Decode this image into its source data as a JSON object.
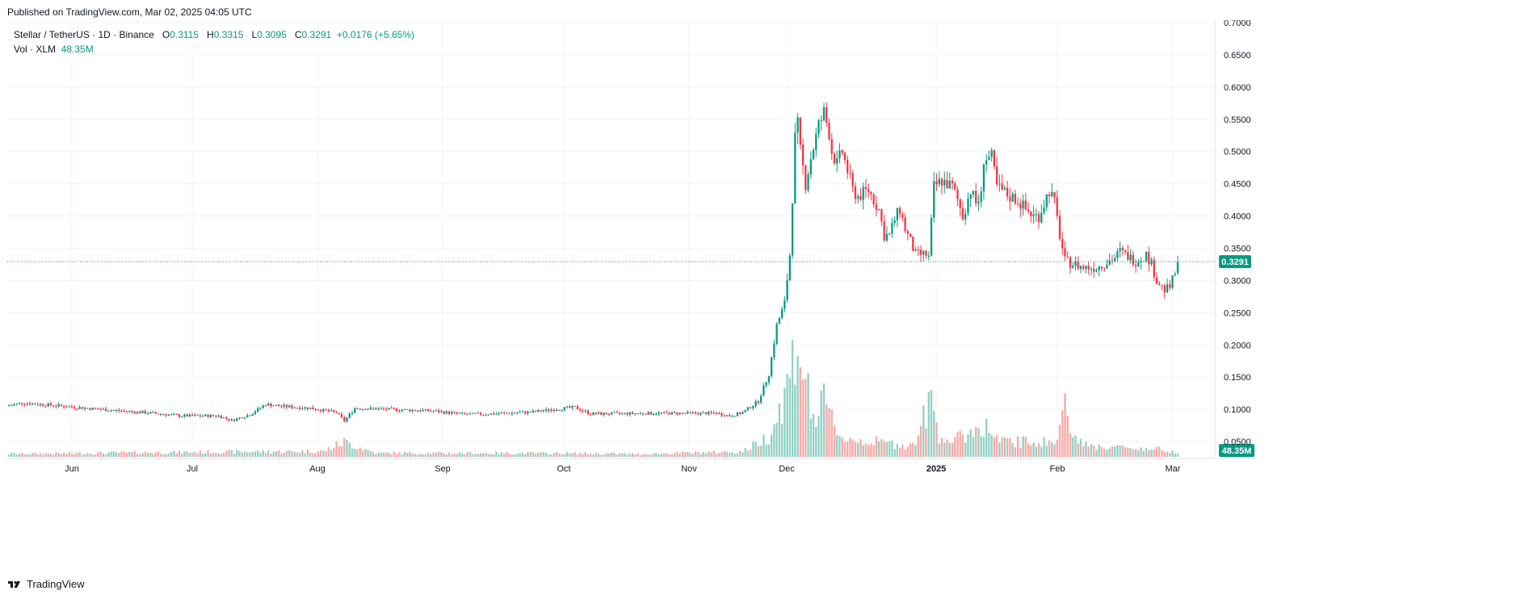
{
  "header": {
    "published": "Published on TradingView.com, Mar 02, 2025 04:05 UTC"
  },
  "legend": {
    "symbol": "Stellar / TetherUS · 1D · Binance",
    "o_label": "O",
    "o": "0.3115",
    "h_label": "H",
    "h": "0.3315",
    "l_label": "L",
    "l": "0.3095",
    "c_label": "C",
    "c": "0.3291",
    "change": "+0.0176 (+5.65%)",
    "vol_label": "Vol · XLM",
    "vol": "48.35M"
  },
  "footer": {
    "brand": "TradingView"
  },
  "colors": {
    "up": "#089981",
    "down": "#f23645",
    "vol_up": "#8fd1c6",
    "vol_down": "#f7a9a7",
    "grid": "#f0f3fa",
    "text": "#131722"
  },
  "chart_data": {
    "type": "candlestick",
    "title": "Stellar / TetherUS · 1D · Binance",
    "x_tick_labels": [
      "Jun",
      "Jul",
      "Aug",
      "Sep",
      "Oct",
      "Nov",
      "Dec",
      "2025",
      "Feb",
      "Mar"
    ],
    "y_tick_labels": [
      "0.7000",
      "0.6500",
      "0.6000",
      "0.5500",
      "0.5000",
      "0.4500",
      "0.4000",
      "0.3500",
      "0.3000",
      "0.2500",
      "0.2000",
      "0.1500",
      "0.1000",
      "0.0500"
    ],
    "ylim": [
      0.03,
      0.7
    ],
    "last_price": 0.3291,
    "last_price_label": "0.3291",
    "last_volume_label": "48.35M",
    "grid": true,
    "price_anchors": [
      [
        0,
        0.106
      ],
      [
        5,
        0.11
      ],
      [
        15,
        0.107
      ],
      [
        35,
        0.1
      ],
      [
        55,
        0.094
      ],
      [
        65,
        0.09
      ],
      [
        80,
        0.09
      ],
      [
        85,
        0.083
      ],
      [
        92,
        0.092
      ],
      [
        98,
        0.108
      ],
      [
        103,
        0.105
      ],
      [
        115,
        0.102
      ],
      [
        125,
        0.095
      ],
      [
        128,
        0.082
      ],
      [
        132,
        0.102
      ],
      [
        145,
        0.1
      ],
      [
        160,
        0.098
      ],
      [
        175,
        0.092
      ],
      [
        190,
        0.094
      ],
      [
        200,
        0.096
      ],
      [
        210,
        0.101
      ],
      [
        216,
        0.103
      ],
      [
        222,
        0.093
      ],
      [
        245,
        0.094
      ],
      [
        270,
        0.094
      ],
      [
        275,
        0.09
      ],
      [
        280,
        0.095
      ],
      [
        286,
        0.113
      ],
      [
        290,
        0.155
      ],
      [
        293,
        0.23
      ],
      [
        296,
        0.265
      ],
      [
        298,
        0.34
      ],
      [
        300,
        0.52
      ],
      [
        301,
        0.54
      ],
      [
        302,
        0.5
      ],
      [
        304,
        0.45
      ],
      [
        306,
        0.49
      ],
      [
        309,
        0.54
      ],
      [
        311,
        0.56
      ],
      [
        313,
        0.53
      ],
      [
        314,
        0.5
      ],
      [
        316,
        0.48
      ],
      [
        318,
        0.5
      ],
      [
        322,
        0.44
      ],
      [
        324,
        0.43
      ],
      [
        328,
        0.44
      ],
      [
        332,
        0.41
      ],
      [
        334,
        0.37
      ],
      [
        336,
        0.37
      ],
      [
        338,
        0.395
      ],
      [
        340,
        0.41
      ],
      [
        342,
        0.38
      ],
      [
        346,
        0.34
      ],
      [
        350,
        0.34
      ],
      [
        351,
        0.335
      ],
      [
        353,
        0.445
      ],
      [
        356,
        0.455
      ],
      [
        360,
        0.445
      ],
      [
        362,
        0.425
      ],
      [
        364,
        0.4
      ],
      [
        367,
        0.44
      ],
      [
        369,
        0.42
      ],
      [
        371,
        0.43
      ],
      [
        372,
        0.49
      ],
      [
        375,
        0.49
      ],
      [
        377,
        0.445
      ],
      [
        382,
        0.43
      ],
      [
        385,
        0.425
      ],
      [
        388,
        0.41
      ],
      [
        391,
        0.4
      ],
      [
        393,
        0.4
      ],
      [
        397,
        0.44
      ],
      [
        399,
        0.42
      ],
      [
        401,
        0.37
      ],
      [
        403,
        0.33
      ],
      [
        410,
        0.32
      ],
      [
        415,
        0.32
      ],
      [
        422,
        0.335
      ],
      [
        424,
        0.345
      ],
      [
        430,
        0.33
      ],
      [
        434,
        0.34
      ],
      [
        436,
        0.325
      ],
      [
        438,
        0.3
      ],
      [
        441,
        0.285
      ],
      [
        443,
        0.29
      ],
      [
        445,
        0.311
      ],
      [
        446,
        0.329
      ]
    ],
    "volume_anchors": [
      [
        0,
        8
      ],
      [
        60,
        12
      ],
      [
        120,
        15
      ],
      [
        128,
        40
      ],
      [
        140,
        10
      ],
      [
        200,
        10
      ],
      [
        240,
        8
      ],
      [
        280,
        14
      ],
      [
        290,
        55
      ],
      [
        296,
        160
      ],
      [
        298,
        220
      ],
      [
        300,
        310
      ],
      [
        302,
        280
      ],
      [
        306,
        130
      ],
      [
        308,
        100
      ],
      [
        311,
        140
      ],
      [
        318,
        50
      ],
      [
        330,
        40
      ],
      [
        345,
        30
      ],
      [
        352,
        150
      ],
      [
        355,
        60
      ],
      [
        360,
        40
      ],
      [
        372,
        85
      ],
      [
        378,
        40
      ],
      [
        400,
        40
      ],
      [
        402,
        140
      ],
      [
        410,
        30
      ],
      [
        440,
        20
      ],
      [
        446,
        12
      ]
    ]
  }
}
